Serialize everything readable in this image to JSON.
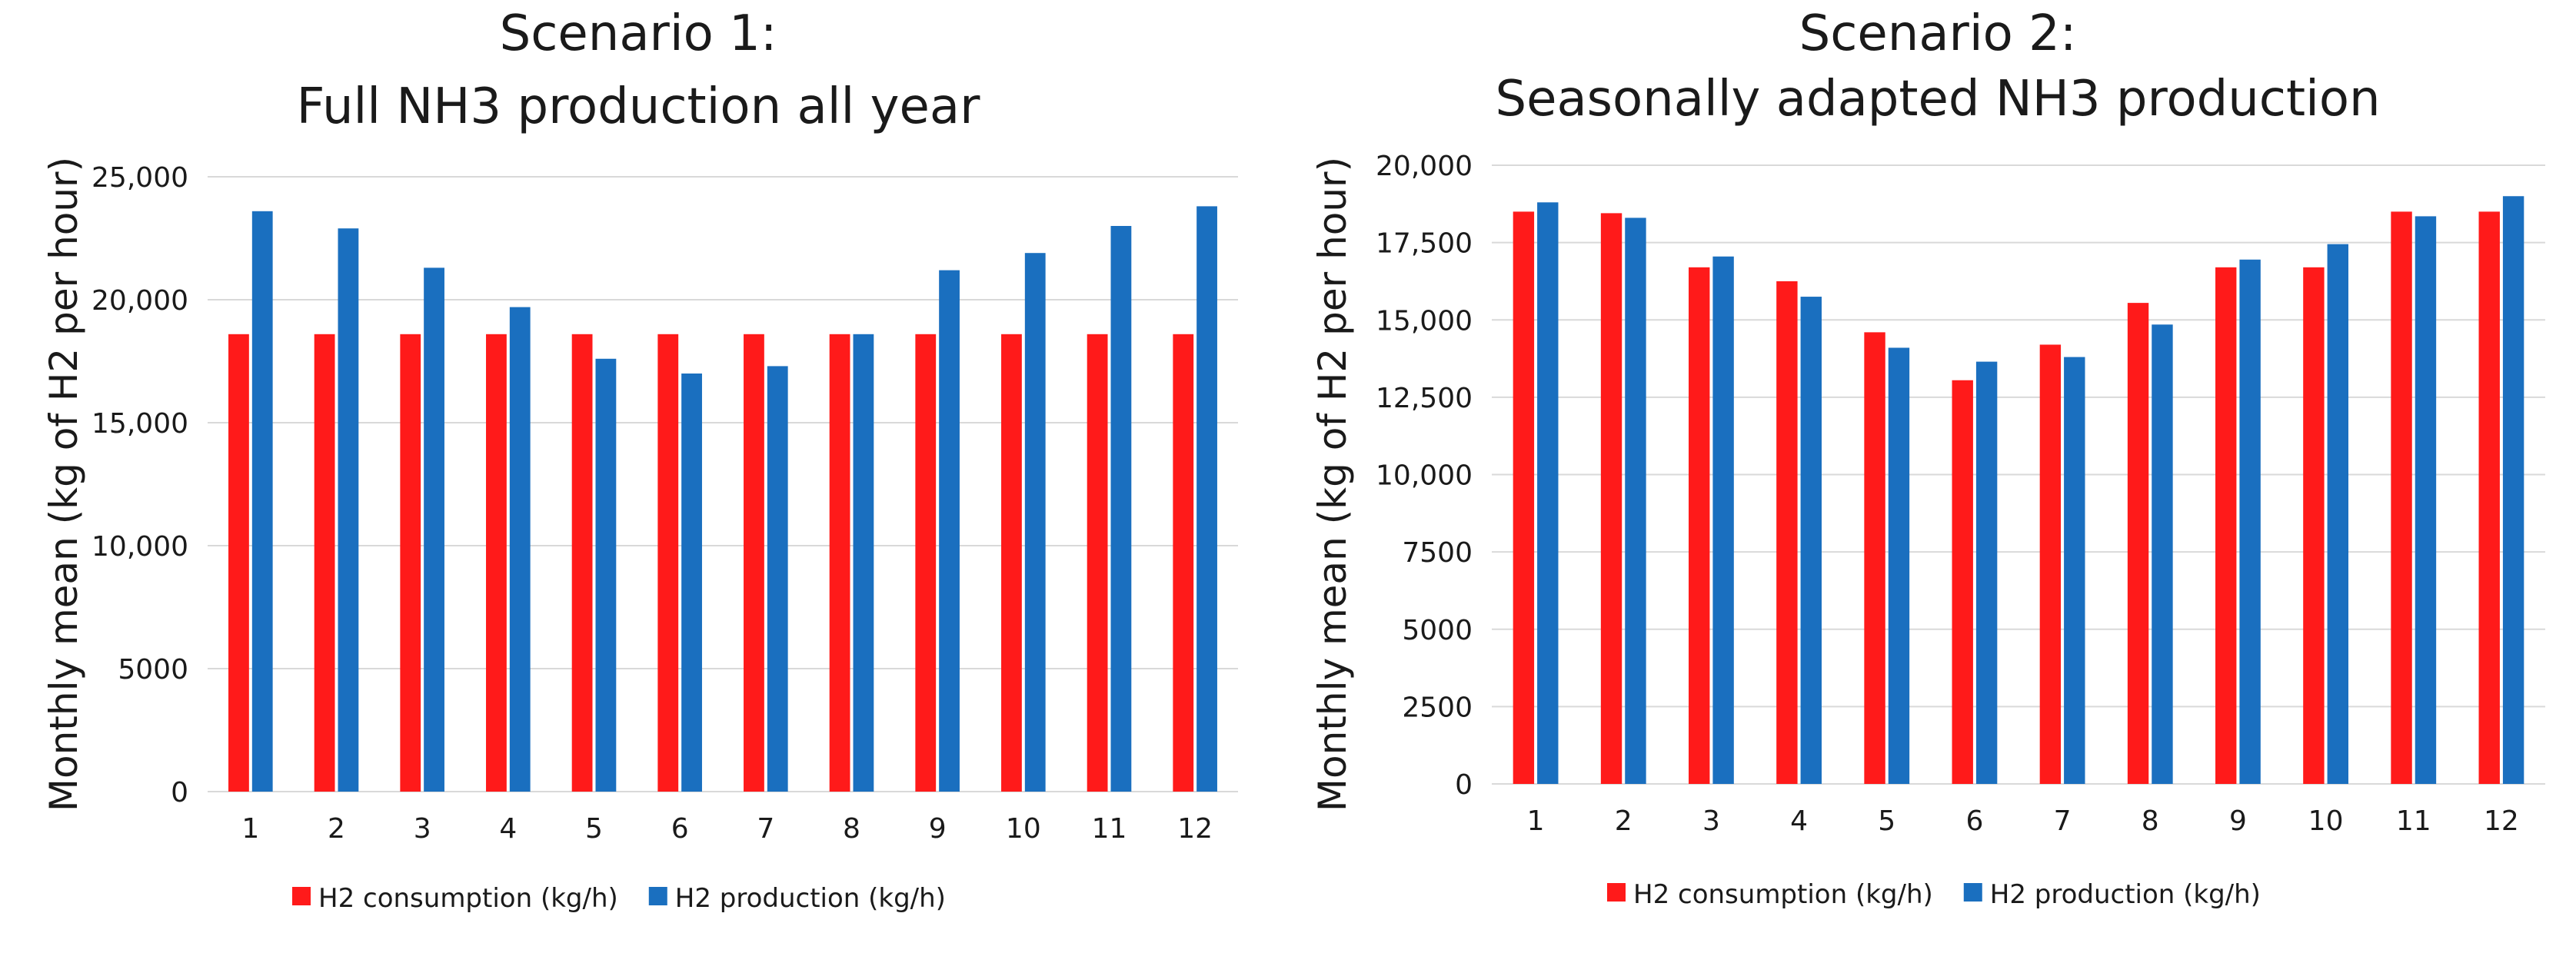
{
  "colors": {
    "consumption": "#ff1a1a",
    "production": "#1a6fbf",
    "grid": "#d9d9d9"
  },
  "chart_data": [
    {
      "type": "bar",
      "title_lines": [
        "Scenario 1:",
        "Full NH3 production all year"
      ],
      "xlabel": "",
      "ylabel": "Monthly mean (kg of H2 per hour)",
      "ylim": [
        0,
        25000
      ],
      "y_ticks": [
        0,
        5000,
        10000,
        15000,
        20000,
        25000
      ],
      "y_tick_labels": [
        "0",
        "5000",
        "10,000",
        "15,000",
        "20,000",
        "25,000"
      ],
      "categories": [
        "1",
        "2",
        "3",
        "4",
        "5",
        "6",
        "7",
        "8",
        "9",
        "10",
        "11",
        "12"
      ],
      "grid": true,
      "legend_position": "bottom",
      "series": [
        {
          "name": "H2 consumption (kg/h)",
          "color_key": "consumption",
          "values": [
            18600,
            18600,
            18600,
            18600,
            18600,
            18600,
            18600,
            18600,
            18600,
            18600,
            18600,
            18600
          ]
        },
        {
          "name": "H2 production (kg/h)",
          "color_key": "production",
          "values": [
            23600,
            22900,
            21300,
            19700,
            17600,
            17000,
            17300,
            18600,
            21200,
            21900,
            23000,
            23800
          ]
        }
      ]
    },
    {
      "type": "bar",
      "title_lines": [
        "Scenario 2:",
        "Seasonally adapted NH3 production"
      ],
      "xlabel": "",
      "ylabel": "Monthly mean (kg of H2 per hour)",
      "ylim": [
        0,
        20000
      ],
      "y_ticks": [
        0,
        2500,
        5000,
        7500,
        10000,
        12500,
        15000,
        17500,
        20000
      ],
      "y_tick_labels": [
        "0",
        "2500",
        "5000",
        "7500",
        "10,000",
        "12,500",
        "15,000",
        "17,500",
        "20,000"
      ],
      "categories": [
        "1",
        "2",
        "3",
        "4",
        "5",
        "6",
        "7",
        "8",
        "9",
        "10",
        "11",
        "12"
      ],
      "grid": true,
      "legend_position": "bottom",
      "series": [
        {
          "name": "H2 consumption (kg/h)",
          "color_key": "consumption",
          "values": [
            18500,
            18450,
            16700,
            16250,
            14600,
            13050,
            14200,
            15550,
            16700,
            16700,
            18500,
            18500
          ]
        },
        {
          "name": "H2 production (kg/h)",
          "color_key": "production",
          "values": [
            18800,
            18300,
            17050,
            15750,
            14100,
            13650,
            13800,
            14850,
            16950,
            17450,
            18350,
            19000
          ]
        }
      ]
    }
  ]
}
